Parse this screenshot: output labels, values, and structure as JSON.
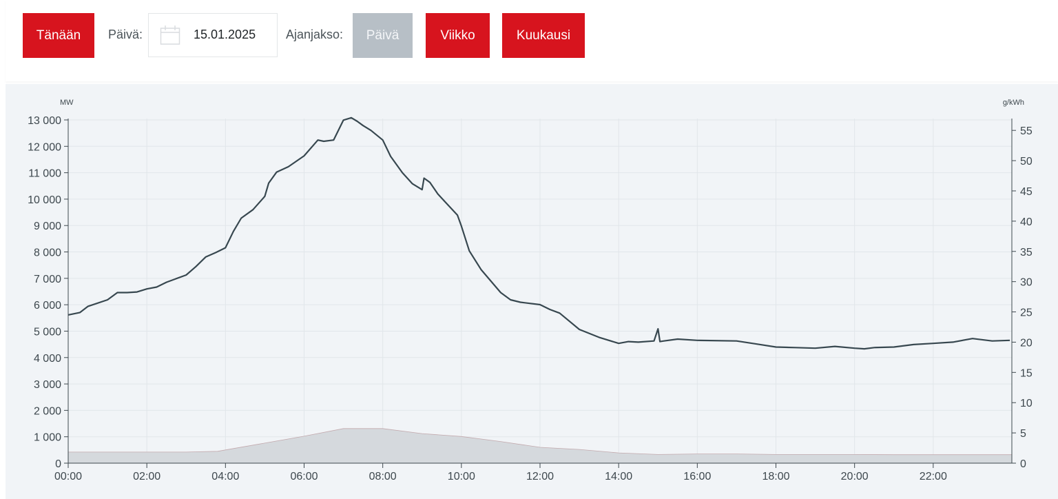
{
  "toolbar": {
    "today_label": "Tänään",
    "date_label": "Päivä:",
    "date_value": "15.01.2025",
    "period_label": "Ajanjakso:",
    "period_day": "Päivä",
    "period_week": "Viikko",
    "period_month": "Kuukausi",
    "accent_color": "#d7141e",
    "disabled_color": "#b7bfc6",
    "calendar_icon": "calendar-icon"
  },
  "chart_data": {
    "type": "line",
    "left_unit": "MW",
    "right_unit": "g/kWh",
    "x_ticks": [
      "00:00",
      "02:00",
      "04:00",
      "06:00",
      "08:00",
      "10:00",
      "12:00",
      "14:00",
      "16:00",
      "18:00",
      "20:00",
      "22:00"
    ],
    "y_left_ticks": [
      "0",
      "1 000",
      "2 000",
      "3 000",
      "4 000",
      "5 000",
      "6 000",
      "7 000",
      "8 000",
      "9 000",
      "10 000",
      "11 000",
      "12 000",
      "13 000"
    ],
    "y_right_ticks": [
      "0",
      "5",
      "10",
      "15",
      "20",
      "25",
      "30",
      "35",
      "40",
      "45",
      "50",
      "55"
    ],
    "ylim_left": [
      0,
      13000
    ],
    "ylim_right": [
      0,
      57.3
    ],
    "x_range_hours": [
      0,
      24
    ],
    "grid": true,
    "series": [
      {
        "kind": "line",
        "axis": "right",
        "color": "#37474f",
        "x": [
          0,
          0.3,
          0.5,
          1,
          1.25,
          1.5,
          1.75,
          2,
          2.25,
          2.5,
          3,
          3.25,
          3.5,
          3.75,
          4,
          4.2,
          4.4,
          4.7,
          5,
          5.1,
          5.3,
          5.6,
          6,
          6.35,
          6.5,
          6.75,
          7,
          7.2,
          7.35,
          7.5,
          7.7,
          8,
          8.2,
          8.5,
          8.75,
          9,
          9.05,
          9.2,
          9.4,
          9.6,
          9.9,
          10,
          10.2,
          10.5,
          11,
          11.25,
          11.5,
          12,
          12.25,
          12.5,
          13,
          13.5,
          14,
          14.25,
          14.5,
          14.9,
          15,
          15.05,
          15.15,
          15.5,
          16,
          17,
          17.5,
          18,
          18.5,
          19,
          19.5,
          20,
          20.25,
          20.5,
          21,
          21.5,
          22,
          22.5,
          23,
          23.5,
          23.95
        ],
        "y": [
          24.5,
          24.9,
          25.9,
          27.0,
          28.2,
          28.2,
          28.3,
          28.8,
          29.1,
          29.9,
          31.1,
          32.5,
          34.1,
          34.8,
          35.6,
          38.3,
          40.5,
          41.9,
          44.1,
          46.3,
          48.1,
          49.0,
          50.8,
          53.4,
          53.2,
          53.4,
          56.7,
          57.1,
          56.5,
          55.8,
          55.0,
          53.4,
          50.7,
          48.0,
          46.2,
          45.2,
          47.1,
          46.4,
          44.5,
          43.1,
          41.0,
          39.2,
          35.1,
          32.0,
          28.2,
          27.0,
          26.6,
          26.2,
          25.4,
          24.8,
          22.1,
          20.8,
          19.8,
          20.1,
          20.0,
          20.2,
          22.2,
          20.1,
          20.2,
          20.5,
          20.3,
          20.2,
          19.7,
          19.2,
          19.1,
          19.0,
          19.3,
          19.0,
          18.9,
          19.1,
          19.2,
          19.6,
          19.8,
          20.0,
          20.6,
          20.2,
          20.3
        ]
      },
      {
        "kind": "area",
        "axis": "left",
        "color": "#d5d9dd",
        "x": [
          0,
          1,
          2,
          3,
          3.8,
          4.3,
          5,
          6,
          7,
          8,
          9,
          10,
          11,
          12,
          13,
          14,
          15,
          16,
          17,
          18,
          19,
          20,
          21,
          22,
          23,
          24
        ],
        "y": [
          420,
          420,
          420,
          420,
          450,
          580,
          760,
          1020,
          1310,
          1310,
          1120,
          1010,
          820,
          600,
          520,
          390,
          330,
          350,
          350,
          330,
          330,
          330,
          320,
          320,
          320,
          320
        ]
      }
    ]
  }
}
